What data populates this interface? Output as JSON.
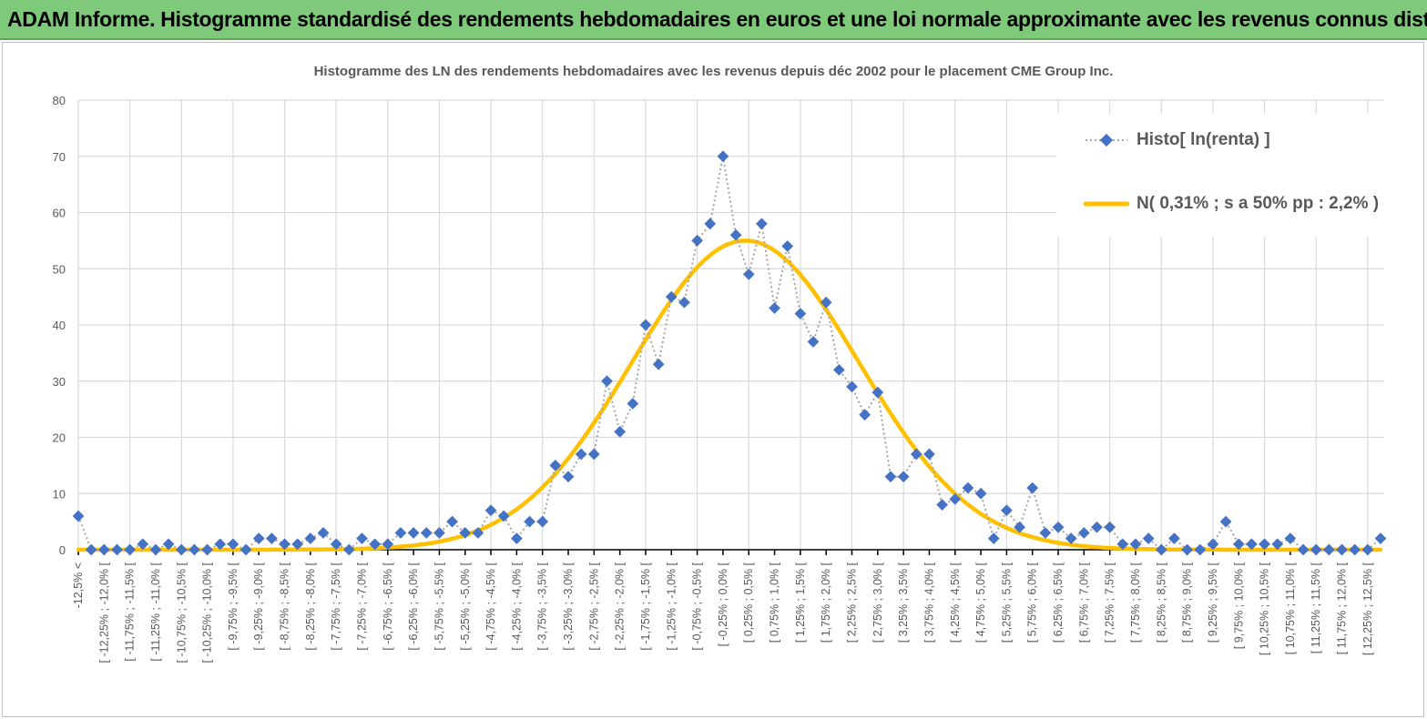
{
  "header": {
    "title": "ADAM Informe. Histogramme standardisé des rendements hebdomadaires en euros et une loi normale approximante avec les revenus connus distribués"
  },
  "colors": {
    "header_bg": "#7fc97a",
    "histo_marker": "#4472c4",
    "histo_line": "#a6a6a6",
    "normal_line": "#ffc000",
    "axis": "#000000",
    "grid": "#d9d9d9"
  },
  "chart_data": {
    "type": "line",
    "title": "Histogramme des LN des rendements hebdomadaires avec les revenus depuis déc 2002 pour le placement CME Group Inc.",
    "xlabel": "",
    "ylabel": "",
    "ylim": [
      0,
      80
    ],
    "y_ticks": [
      "0",
      "10",
      "20",
      "30",
      "40",
      "50",
      "60",
      "70",
      "80"
    ],
    "grid": true,
    "legend_position": "top-right",
    "x_tick_labels": [
      "-12,5% <",
      "[ -12,25% ; -12,0% [",
      "[ -11,75% ; -11,5% [",
      "[ -11,25% ; -11,0% [",
      "[ -10,75% ; -10,5% [",
      "[ -10,25% ; -10,0% [",
      "[ -9,75% ; -9,5% [",
      "[ -9,25% ; -9,0% [",
      "[ -8,75% ; -8,5% [",
      "[ -8,25% ; -8,0% [",
      "[ -7,75% ; -7,5% [",
      "[ -7,25% ; -7,0% [",
      "[ -6,75% ; -6,5% [",
      "[ -6,25% ; -6,0% [",
      "[ -5,75% ; -5,5% [",
      "[ -5,25% ; -5,0% [",
      "[ -4,75% ; -4,5% [",
      "[ -4,25% ; -4,0% [",
      "[ -3,75% ; -3,5% [",
      "[ -3,25% ; -3,0% [",
      "[ -2,75% ; -2,5% [",
      "[ -2,25% ; -2,0% [",
      "[ -1,75% ; -1,5% [",
      "[ -1,25% ; -1,0% [",
      "[ -0,75% ; -0,5% [",
      "[ -0,25% ; 0,0% [",
      "[ 0,25% ; 0,5% [",
      "[ 0,75% ; 1,0% [",
      "[ 1,25% ; 1,5% [",
      "[ 1,75% ; 2,0% [",
      "[ 2,25% ; 2,5% [",
      "[ 2,75% ; 3,0% [",
      "[ 3,25% ; 3,5% [",
      "[ 3,75% ; 4,0% [",
      "[ 4,25% ; 4,5% [",
      "[ 4,75% ; 5,0% [",
      "[ 5,25% ; 5,5% [",
      "[ 5,75% ; 6,0% [",
      "[ 6,25% ; 6,5% [",
      "[ 6,75% ; 7,0% [",
      "[ 7,25% ; 7,5% [",
      "[ 7,75% ; 8,0% [",
      "[ 8,25% ; 8,5% [",
      "[ 8,75% ; 9,0% [",
      "[ 9,25% ; 9,5% [",
      "[ 9,75% ; 10,0% [",
      "[ 10,25% ; 10,5% [",
      "[ 10,75% ; 11,0% [",
      "[ 11,25% ; 11,5% [",
      "[ 11,75% ; 12,0% [",
      "[ 12,25% ; 12,5% ["
    ],
    "bin_width_pct": 0.25,
    "range_pct": [
      -12.5,
      12.5
    ],
    "series": [
      {
        "name": "Histo[ ln(renta) ]",
        "style": "dotted line with diamond markers",
        "values": [
          6,
          0,
          0,
          0,
          0,
          1,
          0,
          1,
          0,
          0,
          0,
          1,
          1,
          0,
          2,
          2,
          1,
          1,
          2,
          3,
          1,
          0,
          2,
          1,
          1,
          3,
          3,
          3,
          3,
          5,
          3,
          3,
          7,
          6,
          2,
          5,
          5,
          15,
          13,
          17,
          17,
          30,
          21,
          26,
          40,
          33,
          45,
          44,
          55,
          58,
          70,
          56,
          49,
          58,
          43,
          54,
          42,
          37,
          44,
          32,
          29,
          24,
          28,
          13,
          13,
          17,
          17,
          8,
          9,
          11,
          10,
          2,
          7,
          4,
          11,
          3,
          4,
          2,
          3,
          4,
          4,
          1,
          1,
          2,
          0,
          2,
          0,
          0,
          1,
          5,
          1,
          1,
          1,
          1,
          2,
          0,
          0,
          0,
          0,
          0,
          0,
          2
        ]
      },
      {
        "name": "N( 0,31% ; s a 50% pp : 2,2% )",
        "style": "smooth solid line",
        "distribution": "normal",
        "mean_pct": 0.31,
        "sd_pct": 2.2,
        "peak_value": 55
      }
    ]
  }
}
